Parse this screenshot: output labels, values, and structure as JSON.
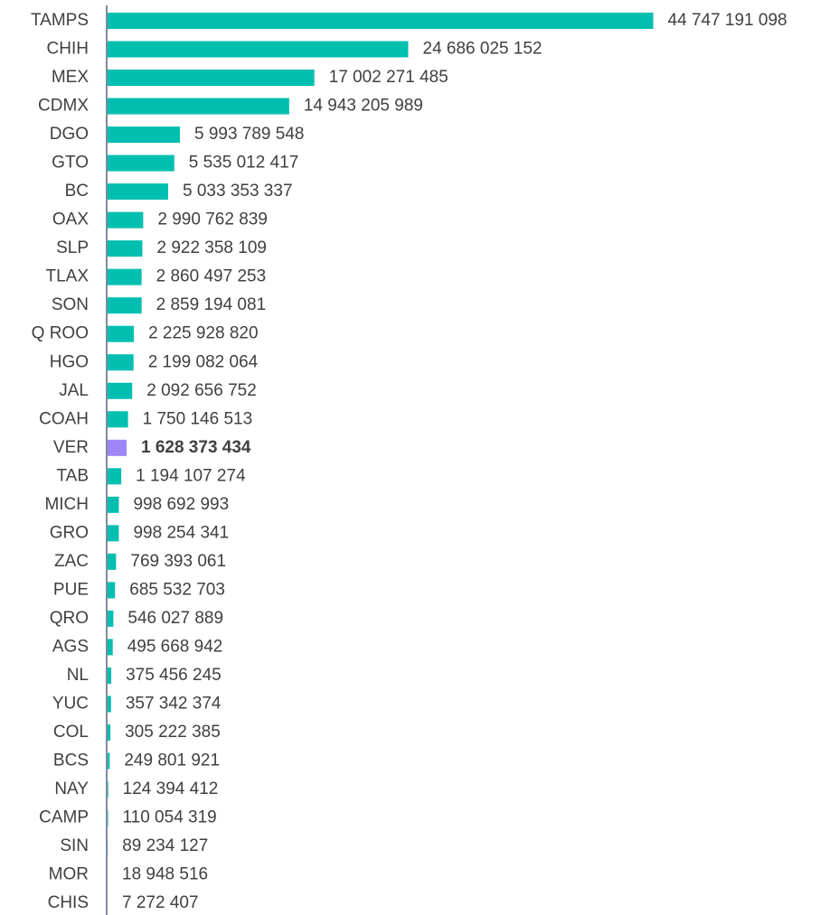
{
  "chart_data": {
    "type": "hbar",
    "categories": [
      "TAMPS",
      "CHIH",
      "MEX",
      "CDMX",
      "DGO",
      "GTO",
      "BC",
      "OAX",
      "SLP",
      "TLAX",
      "SON",
      "Q ROO",
      "HGO",
      "JAL",
      "COAH",
      "VER",
      "TAB",
      "MICH",
      "GRO",
      "ZAC",
      "PUE",
      "QRO",
      "AGS",
      "NL",
      "YUC",
      "COL",
      "BCS",
      "NAY",
      "CAMP",
      "SIN",
      "MOR",
      "CHIS"
    ],
    "values": [
      44747191098,
      24686025152,
      17002271485,
      14943205989,
      5993789548,
      5535012417,
      5033353337,
      2990762839,
      2922358109,
      2860497253,
      2859194081,
      2225928820,
      2199082064,
      2092656752,
      1750146513,
      1628373434,
      1194107274,
      998692993,
      998254341,
      769393061,
      685532703,
      546027889,
      495668942,
      375456245,
      357342374,
      305222385,
      249801921,
      124394412,
      110054319,
      89234127,
      18948516,
      7272407
    ],
    "value_labels": [
      "44 747 191 098",
      "24 686 025 152",
      "17 002 271 485",
      "14 943 205 989",
      "5 993 789 548",
      "5 535 012 417",
      "5 033 353 337",
      "2 990 762 839",
      "2 922 358 109",
      "2 860 497 253",
      "2 859 194 081",
      "2 225 928 820",
      "2 199 082 064",
      "2 092 656 752",
      "1 750 146 513",
      "1 628 373 434",
      "1 194 107 274",
      "998 692 993",
      "998 254 341",
      "769 393 061",
      "685 532 703",
      "546 027 889",
      "495 668 942",
      "375 456 245",
      "357 342 374",
      "305 222 385",
      "249 801 921",
      "124 394 412",
      "110 054 319",
      "89 234 127",
      "18 948 516",
      "7 272 407"
    ],
    "color": "#00bfb0",
    "highlight": {
      "index": 15,
      "color": "#9f86f7"
    },
    "xlim": [
      0,
      58400000000
    ]
  }
}
